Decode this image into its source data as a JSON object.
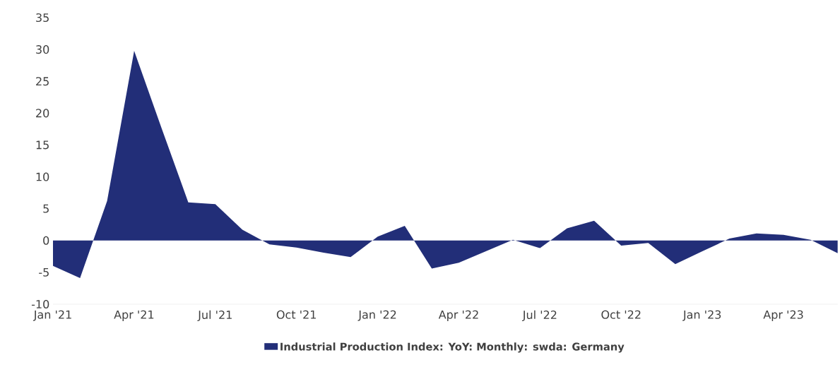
{
  "chart_data": {
    "type": "area",
    "x": [
      "2021-01",
      "2021-02",
      "2021-03",
      "2021-04",
      "2021-05",
      "2021-06",
      "2021-07",
      "2021-08",
      "2021-09",
      "2021-10",
      "2021-11",
      "2021-12",
      "2022-01",
      "2022-02",
      "2022-03",
      "2022-04",
      "2022-05",
      "2022-06",
      "2022-07",
      "2022-08",
      "2022-09",
      "2022-10",
      "2022-11",
      "2022-12",
      "2023-01",
      "2023-02",
      "2023-03",
      "2023-04",
      "2023-05",
      "2023-06"
    ],
    "series": [
      {
        "name": "Industrial Production Index: YoY: Monthly: swda: Germany",
        "color": "#222e78",
        "values": [
          -4.0,
          -5.9,
          6.2,
          29.8,
          17.8,
          6.0,
          5.7,
          1.7,
          -0.6,
          -1.1,
          -1.9,
          -2.6,
          0.6,
          2.3,
          -4.4,
          -3.5,
          -1.7,
          0.1,
          -1.2,
          1.9,
          3.1,
          -0.8,
          -0.4,
          -3.7,
          -1.7,
          0.3,
          1.1,
          0.9,
          0.1,
          -2.0
        ]
      }
    ],
    "xlim": [
      "2021-01",
      "2023-06"
    ],
    "xticks": [
      {
        "value": "2021-01",
        "label": "Jan '21"
      },
      {
        "value": "2021-04",
        "label": "Apr '21"
      },
      {
        "value": "2021-07",
        "label": "Jul '21"
      },
      {
        "value": "2021-10",
        "label": "Oct '21"
      },
      {
        "value": "2022-01",
        "label": "Jan '22"
      },
      {
        "value": "2022-04",
        "label": "Apr '22"
      },
      {
        "value": "2022-07",
        "label": "Jul '22"
      },
      {
        "value": "2022-10",
        "label": "Oct '22"
      },
      {
        "value": "2023-01",
        "label": "Jan '23"
      },
      {
        "value": "2023-04",
        "label": "Apr '23"
      }
    ],
    "ylim": [
      -10,
      35
    ],
    "yticks": [
      -10,
      -5,
      0,
      5,
      10,
      15,
      20,
      25,
      30,
      35
    ],
    "grid": false,
    "legend": "bottom"
  }
}
